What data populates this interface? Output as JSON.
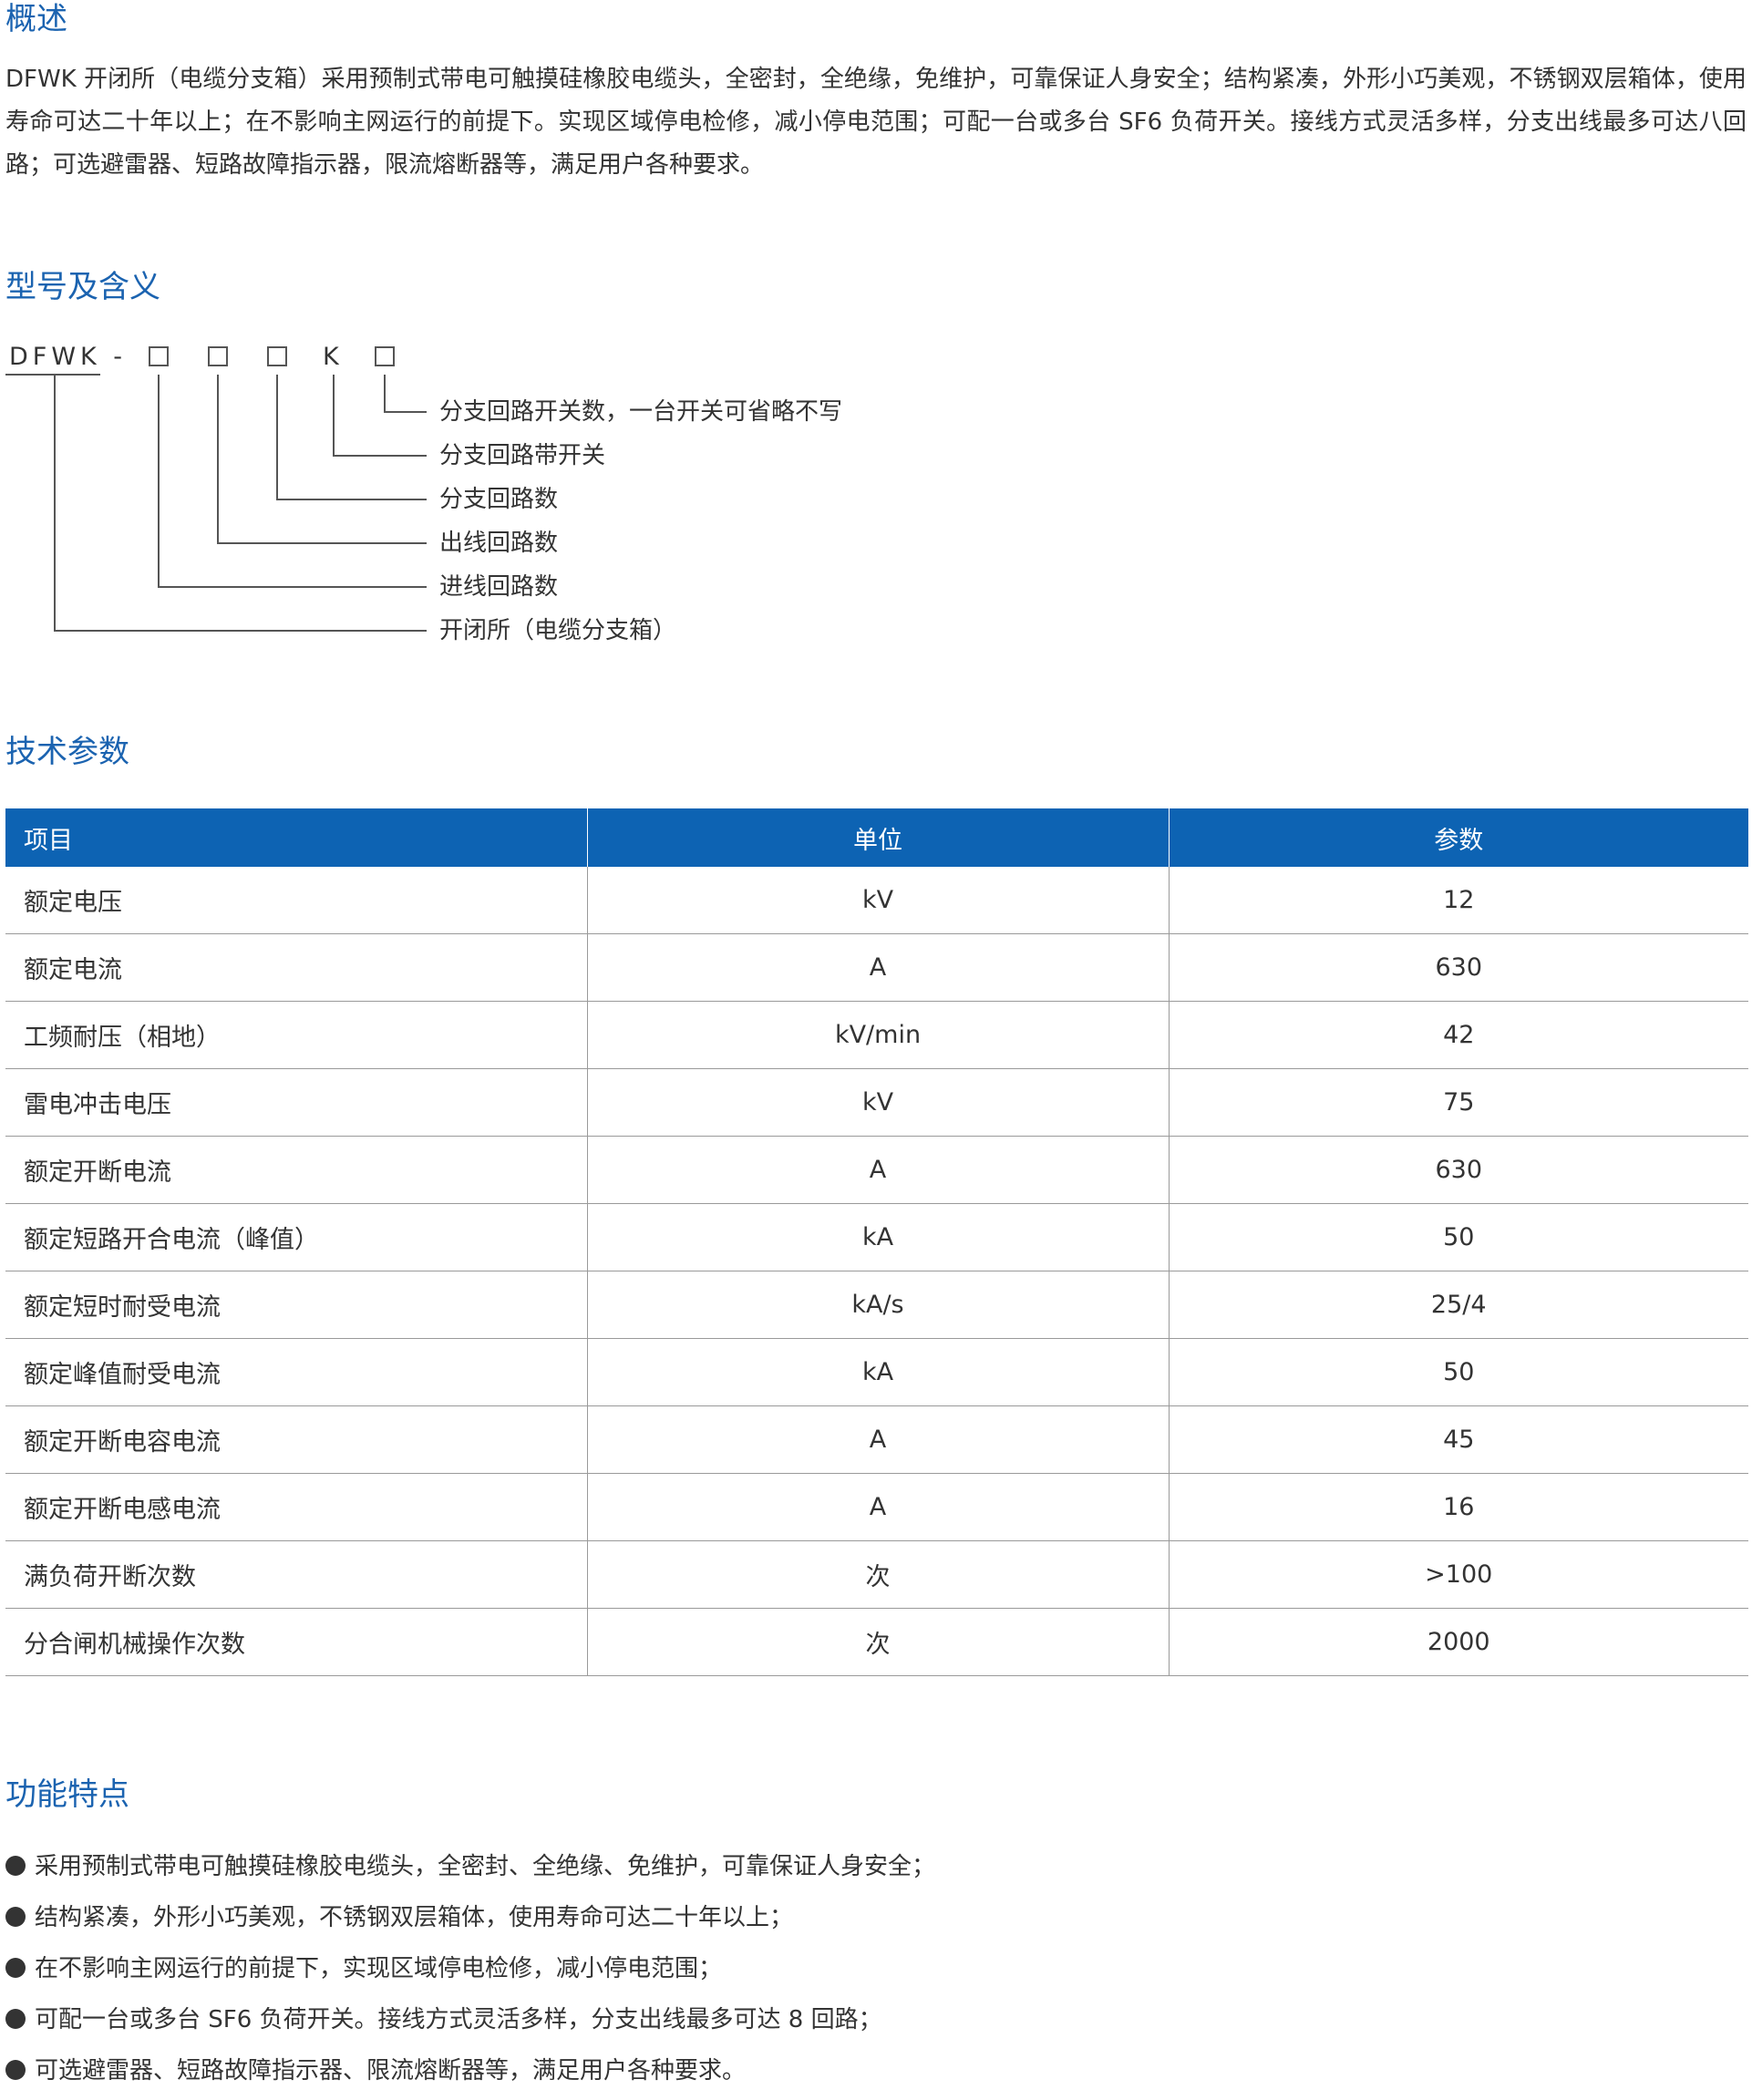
{
  "overview": {
    "title": "概述",
    "text": "DFWK 开闭所（电缆分支箱）采用预制式带电可触摸硅橡胶电缆头，全密封，全绝缘，免维护，可靠保证人身安全；结构紧凑，外形小巧美观，不锈钢双层箱体，使用寿命可达二十年以上；在不影响主网运行的前提下。实现区域停电检修，减小停电范围；可配一台或多台 SF6 负荷开关。接线方式灵活多样，分支出线最多可达八回路；可选避雷器、短路故障指示器，限流熔断器等，满足用户各种要求。"
  },
  "model": {
    "title": "型号及含义",
    "code_prefix": "DFWK -",
    "code_letter": "K",
    "labels": [
      "分支回路开关数，一台开关可省略不写",
      "分支回路带开关",
      "分支回路数",
      "出线回路数",
      "进线回路数",
      "开闭所（电缆分支箱）"
    ]
  },
  "params": {
    "title": "技术参数",
    "headers": [
      "项目",
      "单位",
      "参数"
    ],
    "rows": [
      [
        "额定电压",
        "kV",
        "12"
      ],
      [
        "额定电流",
        "A",
        "630"
      ],
      [
        "工频耐压（相地）",
        "kV/min",
        "42"
      ],
      [
        "雷电冲击电压",
        "kV",
        "75"
      ],
      [
        "额定开断电流",
        "A",
        "630"
      ],
      [
        "额定短路开合电流（峰值）",
        "kA",
        "50"
      ],
      [
        "额定短时耐受电流",
        "kA/s",
        "25/4"
      ],
      [
        "额定峰值耐受电流",
        "kA",
        "50"
      ],
      [
        "额定开断电容电流",
        "A",
        "45"
      ],
      [
        "额定开断电感电流",
        "A",
        "16"
      ],
      [
        "满负荷开断次数",
        "次",
        ">100"
      ],
      [
        "分合闸机械操作次数",
        "次",
        "2000"
      ]
    ]
  },
  "features": {
    "title": "功能特点",
    "items": [
      "采用预制式带电可触摸硅橡胶电缆头，全密封、全绝缘、免维护，可靠保证人身安全；",
      "结构紧凑，外形小巧美观，不锈钢双层箱体，使用寿命可达二十年以上；",
      "在不影响主网运行的前提下，实现区域停电检修，减小停电范围；",
      "可配一台或多台 SF6 负荷开关。接线方式灵活多样，分支出线最多可达 8 回路；",
      "可选避雷器、短路故障指示器、限流熔断器等，满足用户各种要求。"
    ]
  },
  "colors": {
    "accent": "#1b63b0",
    "table_header": "#0d63b3"
  }
}
